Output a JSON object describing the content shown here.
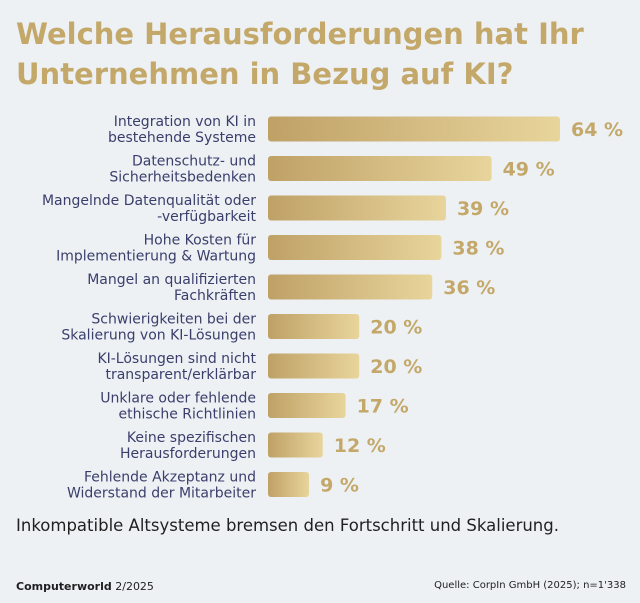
{
  "title_line1": "Welche Herausforderungen hat Ihr",
  "title_line2": "Unternehmen in Bezug auf KI?",
  "caption": "Inkompatible Altsysteme bremsen den Fortschritt und Skalierung.",
  "footer": {
    "brand": "Computerworld",
    "issue": "2/2025",
    "source": "Quelle: CorpIn GmbH (2025); n=1'338"
  },
  "colors": {
    "title": "#c4a86a",
    "bar_light": "#e8d59c",
    "bar_dark": "#bfa166",
    "value_label": "#c4a86a",
    "category_label": "#3b3e6b"
  },
  "chart_data": {
    "type": "bar",
    "orientation": "horizontal",
    "title": "Welche Herausforderungen hat Ihr Unternehmen in Bezug auf KI?",
    "xlabel": "",
    "ylabel": "",
    "unit": "%",
    "xlim": [
      0,
      64
    ],
    "grid": false,
    "categories": [
      [
        "Integration von KI in",
        "bestehende Systeme"
      ],
      [
        "Datenschutz- und",
        "Sicherheitsbedenken"
      ],
      [
        "Mangelnde Datenqualität oder",
        "-verfügbarkeit"
      ],
      [
        "Hohe Kosten für",
        "Implementierung & Wartung"
      ],
      [
        "Mangel an qualifizierten",
        "Fachkräften"
      ],
      [
        "Schwierigkeiten bei der",
        "Skalierung von KI-Lösungen"
      ],
      [
        "KI-Lösungen sind nicht",
        "transparent/erklärbar"
      ],
      [
        "Unklare oder fehlende",
        "ethische Richtlinien"
      ],
      [
        "Keine spezifischen",
        "Herausforderungen"
      ],
      [
        "Fehlende Akzeptanz und",
        "Widerstand der Mitarbeiter"
      ]
    ],
    "values": [
      64,
      49,
      39,
      38,
      36,
      20,
      20,
      17,
      12,
      9
    ],
    "value_labels": [
      "64 %",
      "49 %",
      "39 %",
      "38 %",
      "36 %",
      "20 %",
      "20 %",
      "17 %",
      "12 %",
      "9 %"
    ]
  }
}
